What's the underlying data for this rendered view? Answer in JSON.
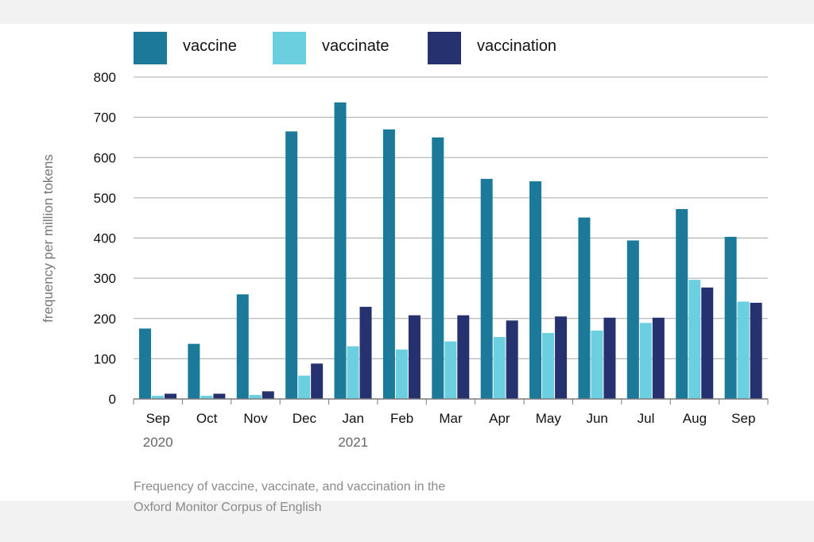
{
  "caption": {
    "line1": "Frequency of vaccine, vaccinate, and vaccination in the",
    "line2": "Oxford Monitor Corpus of English"
  },
  "chart_data": {
    "type": "bar",
    "title": "",
    "xlabel": "",
    "ylabel": "frequency per million tokens",
    "ylim": [
      0,
      800
    ],
    "yticks": [
      0,
      100,
      200,
      300,
      400,
      500,
      600,
      700,
      800
    ],
    "grid": true,
    "legend_position": "top-left",
    "categories": [
      "Sep",
      "Oct",
      "Nov",
      "Dec",
      "Jan",
      "Feb",
      "Mar",
      "Apr",
      "May",
      "Jun",
      "Jul",
      "Aug",
      "Sep"
    ],
    "year_labels": [
      {
        "category_index": 0,
        "label": "2020"
      },
      {
        "category_index": 4,
        "label": "2021"
      }
    ],
    "series": [
      {
        "name": "vaccine",
        "color": "#1b7a99",
        "values": [
          175,
          137,
          260,
          665,
          737,
          670,
          650,
          547,
          541,
          451,
          394,
          472,
          403
        ]
      },
      {
        "name": "vaccinate",
        "color": "#6ccfe0",
        "values": [
          8,
          8,
          10,
          58,
          131,
          123,
          143,
          154,
          164,
          170,
          189,
          296,
          242
        ]
      },
      {
        "name": "vaccination",
        "color": "#263170",
        "values": [
          13,
          13,
          19,
          88,
          229,
          208,
          208,
          195,
          205,
          202,
          202,
          277,
          239
        ]
      }
    ]
  }
}
